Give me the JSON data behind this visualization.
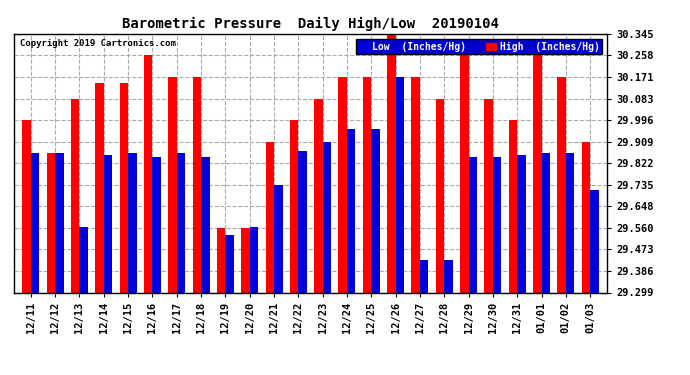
{
  "title": "Barometric Pressure  Daily High/Low  20190104",
  "copyright": "Copyright 2019 Cartronics.com",
  "legend_low": "Low  (Inches/Hg)",
  "legend_high": "High  (Inches/Hg)",
  "background_color": "#ffffff",
  "plot_bg_color": "#ffffff",
  "bar_color_low": "#0000dd",
  "bar_color_high": "#ff0000",
  "grid_color": "#aaaaaa",
  "ylim_min": 29.299,
  "ylim_max": 30.345,
  "yticks": [
    29.299,
    29.386,
    29.473,
    29.56,
    29.648,
    29.735,
    29.822,
    29.909,
    29.996,
    30.083,
    30.171,
    30.258,
    30.345
  ],
  "dates": [
    "12/11",
    "12/12",
    "12/13",
    "12/14",
    "12/15",
    "12/16",
    "12/17",
    "12/18",
    "12/19",
    "12/20",
    "12/21",
    "12/22",
    "12/23",
    "12/24",
    "12/25",
    "12/26",
    "12/27",
    "12/28",
    "12/29",
    "12/30",
    "12/31",
    "01/01",
    "01/02",
    "01/03"
  ],
  "lows": [
    29.862,
    29.862,
    29.565,
    29.855,
    29.862,
    29.848,
    29.862,
    29.848,
    29.53,
    29.565,
    29.735,
    29.87,
    29.908,
    29.96,
    29.96,
    30.171,
    29.43,
    29.43,
    29.848,
    29.848,
    29.855,
    29.862,
    29.862,
    29.715
  ],
  "highs": [
    29.996,
    29.862,
    30.083,
    30.145,
    30.145,
    30.258,
    30.171,
    30.171,
    29.56,
    29.56,
    29.909,
    29.996,
    30.083,
    30.171,
    30.171,
    30.345,
    30.171,
    30.083,
    30.258,
    30.083,
    29.996,
    30.258,
    30.171,
    29.909
  ]
}
